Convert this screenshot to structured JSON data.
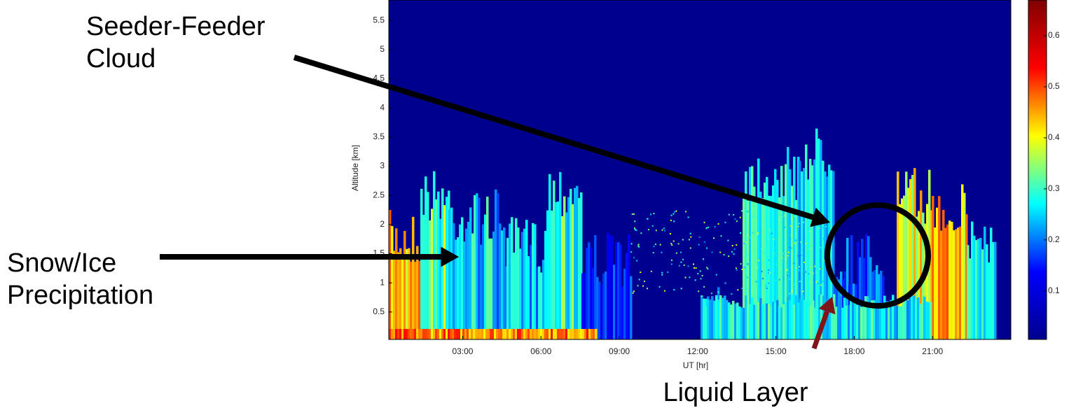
{
  "chart_data": {
    "type": "heatmap",
    "x_label": "UT [hr]",
    "y_label": "Altitude [km]",
    "xlim": [
      0.17,
      24
    ],
    "ylim": [
      0.03,
      5.85
    ],
    "xticks": [
      {
        "value": 3,
        "label": "03:00"
      },
      {
        "value": 6,
        "label": "06:00"
      },
      {
        "value": 9,
        "label": "09:00"
      },
      {
        "value": 12,
        "label": "12:00"
      },
      {
        "value": 15,
        "label": "15:00"
      },
      {
        "value": 18,
        "label": "18:00"
      },
      {
        "value": 21,
        "label": "21:00"
      }
    ],
    "yticks": [
      0.5,
      1,
      1.5,
      2,
      2.5,
      3,
      3.5,
      4,
      4.5,
      5,
      5.5
    ],
    "colorbar": {
      "lim": [
        0.005,
        0.67
      ],
      "ticks": [
        0.1,
        0.2,
        0.3,
        0.4,
        0.5,
        0.6
      ],
      "colors": [
        "#00008f",
        "#0000ff",
        "#00ffff",
        "#ffff00",
        "#ff0000",
        "#800000"
      ]
    },
    "annotations": [
      {
        "lines": [
          "Seeder-Feeder",
          "Cloud"
        ],
        "color": "#000000"
      },
      {
        "lines": [
          "Snow/Ice",
          "Precipitation"
        ],
        "color": "#000000"
      },
      {
        "lines": [
          "Liquid Layer"
        ],
        "color": "#7f1518"
      }
    ]
  }
}
